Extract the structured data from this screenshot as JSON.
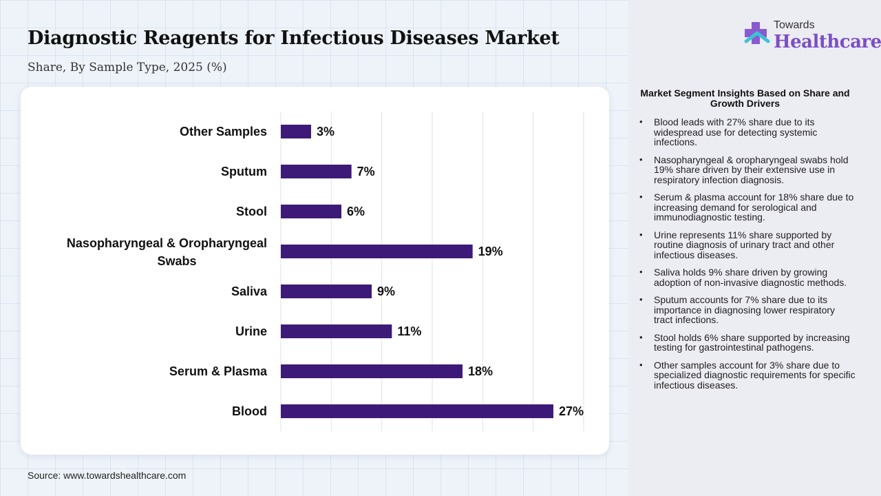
{
  "header": {
    "title": "Diagnostic Reagents for Infectious Diseases Market",
    "subtitle": "Share, By Sample Type, 2025 (%)"
  },
  "logo": {
    "line1": "Towards",
    "line2": "Healthcare"
  },
  "source": "Source: www.towardshealthcare.com",
  "colors": {
    "bar": "#3d1a78",
    "logo_accent": "#7b4fc4",
    "panel_bg": "#ececf3"
  },
  "chart_data": {
    "type": "bar",
    "orientation": "horizontal",
    "categories": [
      "Other Samples",
      "Sputum",
      "Stool",
      "Nasopharyngeal & Oropharyngeal Swabs",
      "Saliva",
      "Urine",
      "Serum & Plasma",
      "Blood"
    ],
    "values": [
      3,
      7,
      6,
      19,
      9,
      11,
      18,
      27
    ],
    "value_labels": [
      "3%",
      "7%",
      "6%",
      "19%",
      "9%",
      "11%",
      "18%",
      "27%"
    ],
    "xlim": [
      0,
      30
    ],
    "grid": "vertical"
  },
  "insights": {
    "title": "Market Segment Insights Based on Share and Growth Drivers",
    "bullet": "•",
    "items": [
      "Blood leads with 27% share due to its widespread use for detecting systemic infections.",
      "Nasopharyngeal & oropharyngeal swabs hold 19% share driven by their extensive use in respiratory infection diagnosis.",
      "Serum & plasma account for 18% share due to increasing demand for serological and immunodiagnostic testing.",
      "Urine represents 11% share supported by routine diagnosis of urinary tract and other infectious diseases.",
      "Saliva holds 9% share driven by growing adoption of non-invasive diagnostic methods.",
      "Sputum accounts for 7% share due to its importance in diagnosing lower respiratory tract infections.",
      "Stool holds 6% share supported by increasing testing for gastrointestinal pathogens.",
      "Other samples account for 3% share due to specialized diagnostic requirements for specific infectious diseases."
    ]
  }
}
